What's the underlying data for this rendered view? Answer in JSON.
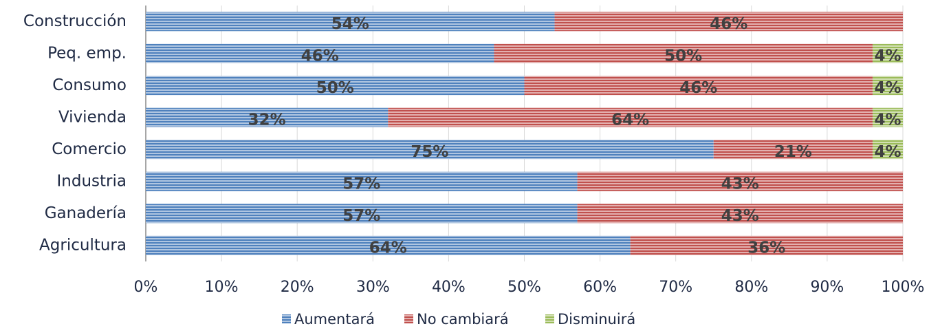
{
  "chart_data": {
    "type": "stacked-barh",
    "categories": [
      "Construcción",
      "Peq. emp.",
      "Consumo",
      "Vivienda",
      "Comercio",
      "Industria",
      "Ganadería",
      "Agricultura"
    ],
    "series": [
      {
        "name": "Aumentará",
        "color": "#4f81bd",
        "values": [
          54,
          46,
          50,
          32,
          75,
          57,
          57,
          64
        ],
        "value_labels": [
          "54%",
          "46%",
          "50%",
          "32%",
          "75%",
          "57%",
          "57%",
          "64%"
        ]
      },
      {
        "name": "No cambiará",
        "color": "#c0504d",
        "values": [
          46,
          50,
          46,
          64,
          21,
          43,
          43,
          36
        ],
        "value_labels": [
          "46%",
          "50%",
          "46%",
          "64%",
          "21%",
          "43%",
          "43%",
          "36%"
        ]
      },
      {
        "name": "Disminuirá",
        "color": "#9bbb59",
        "values": [
          0,
          4,
          4,
          4,
          4,
          0,
          0,
          0
        ],
        "value_labels": [
          null,
          "4%",
          "4%",
          "4%",
          "4%",
          null,
          null,
          null
        ]
      }
    ],
    "xlim": [
      0,
      100
    ],
    "xticks": [
      {
        "value": 0,
        "label": "0%"
      },
      {
        "value": 10,
        "label": "10%"
      },
      {
        "value": 20,
        "label": "20%"
      },
      {
        "value": 30,
        "label": "30%"
      },
      {
        "value": 40,
        "label": "40%"
      },
      {
        "value": 50,
        "label": "50%"
      },
      {
        "value": 60,
        "label": "60%"
      },
      {
        "value": 70,
        "label": "70%"
      },
      {
        "value": 80,
        "label": "80%"
      },
      {
        "value": 90,
        "label": "90%"
      },
      {
        "value": 100,
        "label": "100%"
      }
    ],
    "grid": true,
    "legend": "bottom"
  }
}
